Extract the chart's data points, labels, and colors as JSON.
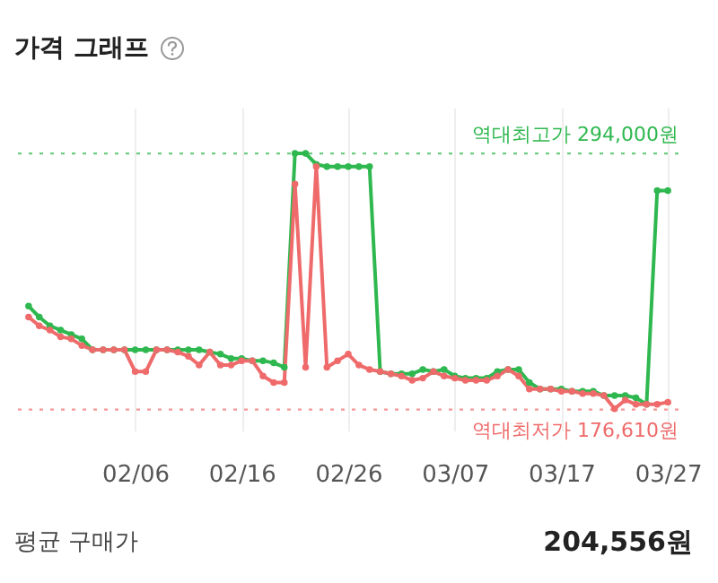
{
  "chart_data": {
    "type": "line",
    "title": "가격 그래프",
    "x": [
      "--01-27",
      "--01-28",
      "--01-29",
      "--01-30",
      "--01-31",
      "--02-01",
      "--02-02",
      "--02-03",
      "--02-04",
      "--02-05",
      "--02-06",
      "--02-07",
      "--02-08",
      "--02-09",
      "--02-10",
      "--02-11",
      "--02-12",
      "--02-13",
      "--02-14",
      "--02-15",
      "--02-16",
      "--02-17",
      "--02-18",
      "--02-19",
      "--02-20",
      "--02-21",
      "--02-22",
      "--02-23",
      "--02-24",
      "--02-25",
      "--02-26",
      "--02-27",
      "--02-28",
      "--02-29",
      "--03-01",
      "--03-02",
      "--03-03",
      "--03-04",
      "--03-05",
      "--03-06",
      "--03-07",
      "--03-08",
      "--03-09",
      "--03-10",
      "--03-11",
      "--03-12",
      "--03-13",
      "--03-14",
      "--03-15",
      "--03-16",
      "--03-17",
      "--03-18",
      "--03-19",
      "--03-20",
      "--03-21",
      "--03-22",
      "--03-23",
      "--03-24",
      "--03-25",
      "--03-26",
      "--03-27"
    ],
    "series": [
      {
        "color": "#2fb84f",
        "values": [
          224000,
          219000,
          215000,
          213000,
          211000,
          209000,
          204000,
          204000,
          204000,
          204000,
          204000,
          204000,
          204000,
          204000,
          204000,
          204000,
          204000,
          203000,
          202000,
          200000,
          200000,
          199000,
          199000,
          198000,
          196000,
          294000,
          294000,
          289000,
          288000,
          288000,
          288000,
          288000,
          288000,
          194000,
          193000,
          193000,
          193000,
          195000,
          194000,
          195000,
          192000,
          191000,
          191000,
          191000,
          194000,
          195000,
          195000,
          189000,
          186000,
          186000,
          186000,
          185000,
          185000,
          185000,
          183000,
          183000,
          183000,
          182000,
          179000,
          277000,
          277000
        ]
      },
      {
        "color": "#ef6b6b",
        "values": [
          219000,
          215000,
          213000,
          210000,
          209000,
          206000,
          204000,
          204000,
          204000,
          204000,
          194000,
          194000,
          204000,
          204000,
          203000,
          201000,
          197000,
          203000,
          197000,
          197000,
          199000,
          199000,
          192000,
          189000,
          189000,
          280000,
          196000,
          288000,
          196000,
          199000,
          202000,
          197000,
          195000,
          194000,
          193000,
          192000,
          190000,
          191000,
          194000,
          192000,
          191000,
          190000,
          190000,
          190000,
          192000,
          195000,
          192000,
          186000,
          186000,
          186000,
          185000,
          185000,
          184000,
          184000,
          183000,
          177000,
          181000,
          179000,
          179000,
          179000,
          180000
        ]
      }
    ],
    "xlim": [
      "--01-26",
      "--03-28"
    ],
    "ylim": [
      167000,
      315000
    ],
    "xticks": [
      {
        "value": "--02-06",
        "label": "02/06"
      },
      {
        "value": "--02-16",
        "label": "02/16"
      },
      {
        "value": "--02-26",
        "label": "02/26"
      },
      {
        "value": "--03-07",
        "label": "03/07"
      },
      {
        "value": "--03-17",
        "label": "03/17"
      },
      {
        "value": "--03-27",
        "label": "03/27"
      }
    ],
    "tick_labels": "x",
    "grid": "x",
    "marker": "circle",
    "line_style": "solid",
    "ref_lines": [
      {
        "axis": "y",
        "value": 294000,
        "label": "역대최고가 294,000원",
        "color": "#2fb84f",
        "line_style": "dotted"
      },
      {
        "axis": "y",
        "value": 176610,
        "label": "역대최저가 176,610원",
        "color": "#ef6b6b",
        "line_style": "dotted"
      }
    ],
    "annotations": [
      "평균 구매가",
      "204,556원"
    ]
  }
}
